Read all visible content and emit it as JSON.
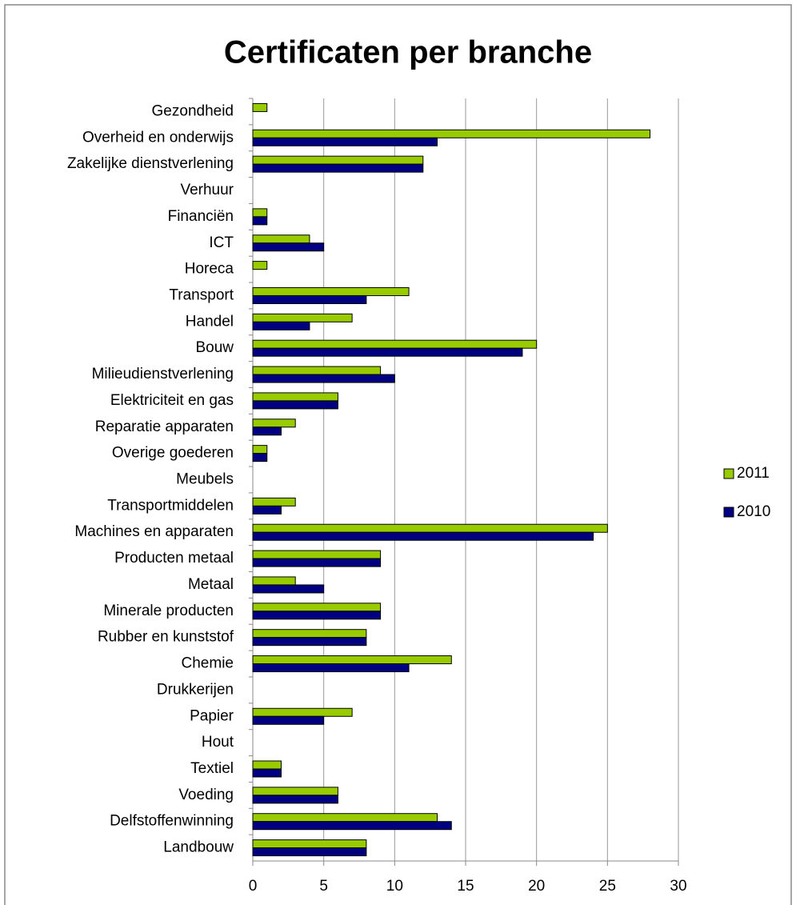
{
  "chart_data": {
    "type": "hbar",
    "title": "Certificaten per branche",
    "categories": [
      "Gezondheid",
      "Overheid en onderwijs",
      "Zakelijke dienstverlening",
      "Verhuur",
      "Financiën",
      "ICT",
      "Horeca",
      "Transport",
      "Handel",
      "Bouw",
      "Milieudienstverlening",
      "Elektriciteit en gas",
      "Reparatie apparaten",
      "Overige goederen",
      "Meubels",
      "Transportmiddelen",
      "Machines en apparaten",
      "Producten metaal",
      "Metaal",
      "Minerale producten",
      "Rubber en kunststof",
      "Chemie",
      "Drukkerijen",
      "Papier",
      "Hout",
      "Textiel",
      "Voeding",
      "Delfstoffenwinning",
      "Landbouw"
    ],
    "series": [
      {
        "name": "2011",
        "color": "#99cc00",
        "values": [
          1,
          28,
          12,
          0,
          1,
          4,
          1,
          11,
          7,
          20,
          9,
          6,
          3,
          1,
          0,
          3,
          25,
          9,
          3,
          9,
          8,
          14,
          0,
          7,
          0,
          2,
          6,
          13,
          8
        ]
      },
      {
        "name": "2010",
        "color": "#000080",
        "values": [
          0,
          13,
          12,
          0,
          1,
          5,
          0,
          8,
          4,
          19,
          10,
          6,
          2,
          1,
          0,
          2,
          24,
          9,
          5,
          9,
          8,
          11,
          0,
          5,
          0,
          2,
          6,
          14,
          8
        ]
      }
    ],
    "xlim": [
      0,
      30
    ],
    "xticks": [
      0,
      5,
      10,
      15,
      20,
      25,
      30
    ],
    "grid": true,
    "legend": "right"
  }
}
